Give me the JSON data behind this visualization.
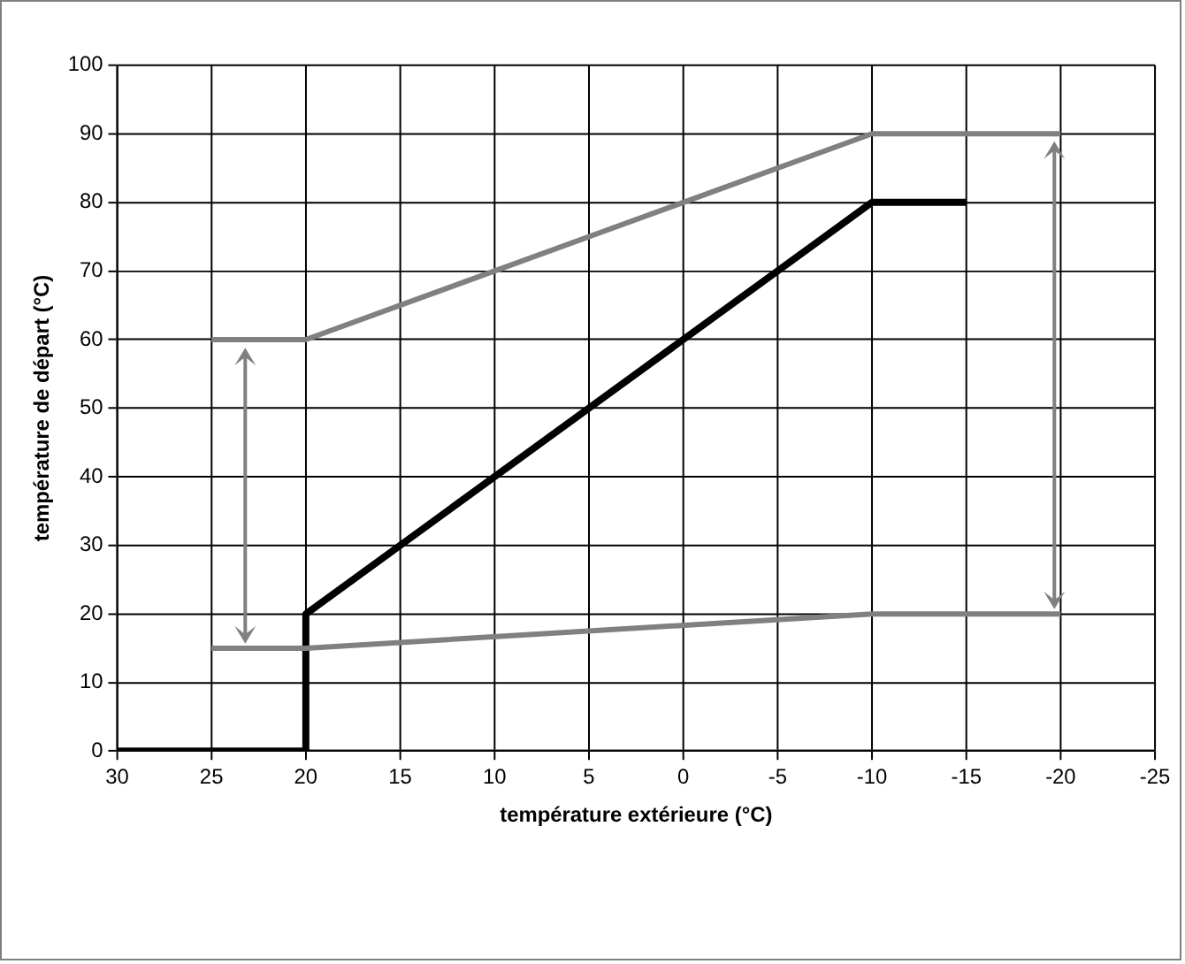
{
  "chart_data": {
    "type": "line",
    "xlabel": "température extérieure (°C)",
    "ylabel": "température de départ (°C)",
    "xlim": [
      30,
      -25
    ],
    "xticks": [
      30,
      25,
      20,
      15,
      10,
      5,
      0,
      -5,
      -10,
      -15,
      -20,
      -25
    ],
    "ylim": [
      0,
      100
    ],
    "yticks": [
      0,
      10,
      20,
      30,
      40,
      50,
      60,
      70,
      80,
      90,
      100
    ],
    "grid": true,
    "legend": false,
    "marker": "none",
    "line_style": "solid",
    "series": [
      {
        "color": "#808080",
        "x": [
          25,
          20,
          -10,
          -20
        ],
        "values": [
          60,
          60,
          90,
          90
        ]
      },
      {
        "color": "#808080",
        "x": [
          25,
          20,
          -10,
          -20
        ],
        "values": [
          15,
          15,
          20,
          20
        ]
      },
      {
        "color": "#000000",
        "x": [
          30,
          20,
          20,
          -10,
          -15
        ],
        "values": [
          0,
          0,
          20,
          80,
          80
        ]
      }
    ]
  }
}
